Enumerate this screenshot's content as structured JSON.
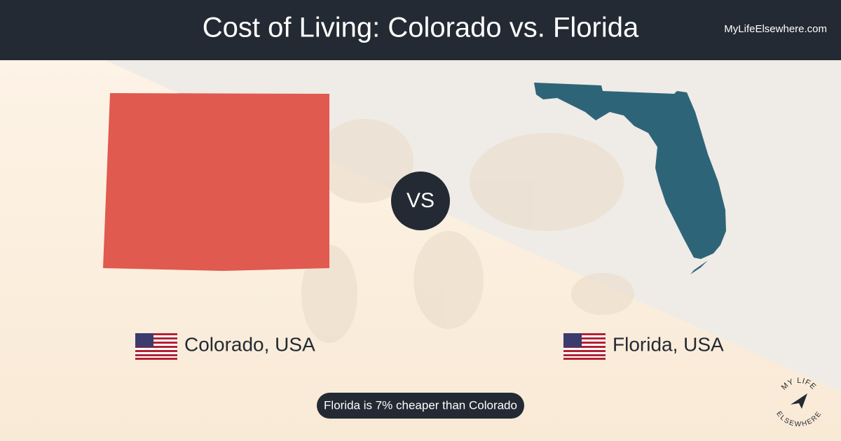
{
  "header": {
    "title": "Cost of Living: Colorado vs. Florida",
    "site": "MyLifeElsewhere.com"
  },
  "left": {
    "label": "Colorado, USA"
  },
  "right": {
    "label": "Florida, USA"
  },
  "vs": "VS",
  "comparison": "Florida is 7% cheaper than Colorado",
  "logo": {
    "top": "MY LIFE",
    "bottom": "ELSEWHERE"
  }
}
